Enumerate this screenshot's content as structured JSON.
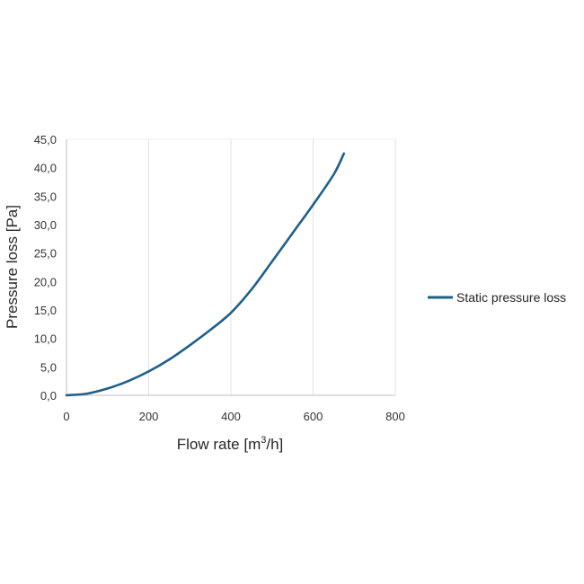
{
  "chart_data": {
    "type": "line",
    "xlabel_main": "Flow rate [m",
    "xlabel_sup": "3",
    "xlabel_tail": "/h]",
    "ylabel": "Pressure loss [Pa]",
    "xlim": [
      0,
      800
    ],
    "ylim": [
      0,
      45
    ],
    "x_ticks": [
      "0",
      "200",
      "400",
      "600",
      "800"
    ],
    "x_tick_values": [
      0,
      200,
      400,
      600,
      800
    ],
    "y_ticks": [
      "0,0",
      "5,0",
      "10,0",
      "15,0",
      "20,0",
      "25,0",
      "30,0",
      "35,0",
      "40,0",
      "45,0"
    ],
    "y_tick_values": [
      0,
      5,
      10,
      15,
      20,
      25,
      30,
      35,
      40,
      45
    ],
    "grid": "vertical",
    "legend_position": "right",
    "color": "#1f5f8b",
    "series": [
      {
        "name": "Static pressure loss",
        "x": [
          0,
          50,
          100,
          150,
          200,
          250,
          300,
          350,
          400,
          450,
          500,
          550,
          600,
          650,
          675
        ],
        "y": [
          0,
          0.3,
          1.2,
          2.5,
          4.2,
          6.3,
          8.8,
          11.5,
          14.5,
          18.6,
          23.5,
          28.5,
          33.5,
          38.8,
          42.5
        ]
      }
    ]
  }
}
